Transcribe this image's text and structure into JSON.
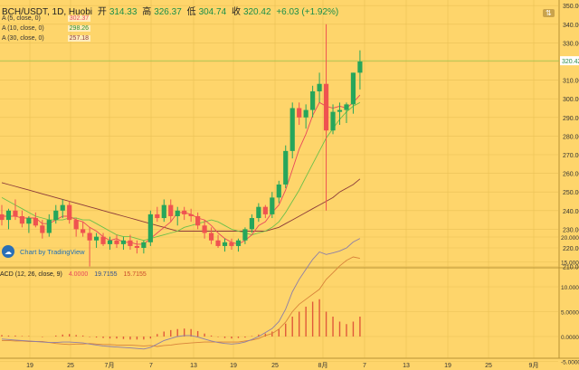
{
  "header": {
    "symbol": "BCH/USDT, 1D, Huobi",
    "open_label": "开",
    "open": "314.33",
    "high_label": "高",
    "high": "326.37",
    "low_label": "低",
    "low": "304.74",
    "close_label": "收",
    "close": "320.42",
    "change": "+6.03 (+1.92%)"
  },
  "indicators": [
    {
      "label": "A (5, close, 0)",
      "value": "302.37",
      "color": "#e8485c"
    },
    {
      "label": "A (10, close, 0)",
      "value": "298.26",
      "color": "#6cc04a"
    },
    {
      "label": "A (30, close, 0)",
      "value": "257.18",
      "color": "#8b3a3a"
    }
  ],
  "branding": {
    "text": "Chart by TradingView",
    "icon": "tradingview-logo"
  },
  "macd_header": {
    "label": "ACD (12, 26, close, 9)",
    "hist": "4.0000",
    "macd": "19.7155",
    "signal": "15.7155"
  },
  "colors": {
    "up": "#26a65b",
    "down": "#ef5350",
    "background": "#fed56b",
    "last_price_tag": "#ffffff"
  },
  "chart_data": [
    {
      "type": "candlestick",
      "title": "BCH/USDT, 1D, Huobi",
      "y_ticks": [
        210,
        220,
        230,
        240,
        250,
        260,
        270,
        280,
        290,
        300,
        310,
        320,
        330,
        340,
        350
      ],
      "x_ticks": [
        "19",
        "25",
        "7月",
        "7",
        "13",
        "19",
        "25",
        "8月",
        "7",
        "13",
        "19",
        "25",
        "9月"
      ],
      "last_price": "320.42",
      "ylim": [
        210,
        355
      ],
      "candles": [
        {
          "o": 238,
          "h": 243,
          "l": 232,
          "c": 235
        },
        {
          "o": 235,
          "h": 241,
          "l": 230,
          "c": 240
        },
        {
          "o": 240,
          "h": 246,
          "l": 235,
          "c": 237
        },
        {
          "o": 237,
          "h": 240,
          "l": 231,
          "c": 233
        },
        {
          "o": 233,
          "h": 237,
          "l": 228,
          "c": 236
        },
        {
          "o": 236,
          "h": 239,
          "l": 231,
          "c": 232
        },
        {
          "o": 232,
          "h": 235,
          "l": 225,
          "c": 228
        },
        {
          "o": 228,
          "h": 238,
          "l": 226,
          "c": 235
        },
        {
          "o": 235,
          "h": 243,
          "l": 233,
          "c": 240
        },
        {
          "o": 240,
          "h": 246,
          "l": 236,
          "c": 243
        },
        {
          "o": 243,
          "h": 245,
          "l": 233,
          "c": 235
        },
        {
          "o": 235,
          "h": 236,
          "l": 226,
          "c": 230
        },
        {
          "o": 230,
          "h": 234,
          "l": 226,
          "c": 228
        },
        {
          "o": 228,
          "h": 231,
          "l": 210,
          "c": 224
        },
        {
          "o": 224,
          "h": 228,
          "l": 220,
          "c": 226
        },
        {
          "o": 226,
          "h": 228,
          "l": 221,
          "c": 222
        },
        {
          "o": 222,
          "h": 226,
          "l": 219,
          "c": 224
        },
        {
          "o": 224,
          "h": 227,
          "l": 220,
          "c": 222
        },
        {
          "o": 222,
          "h": 226,
          "l": 219,
          "c": 224
        },
        {
          "o": 224,
          "h": 227,
          "l": 219,
          "c": 221
        },
        {
          "o": 221,
          "h": 224,
          "l": 217,
          "c": 220
        },
        {
          "o": 220,
          "h": 224,
          "l": 217,
          "c": 223
        },
        {
          "o": 223,
          "h": 240,
          "l": 221,
          "c": 238
        },
        {
          "o": 238,
          "h": 242,
          "l": 234,
          "c": 236
        },
        {
          "o": 236,
          "h": 246,
          "l": 234,
          "c": 243
        },
        {
          "o": 243,
          "h": 246,
          "l": 234,
          "c": 237
        },
        {
          "o": 237,
          "h": 242,
          "l": 232,
          "c": 240
        },
        {
          "o": 240,
          "h": 242,
          "l": 235,
          "c": 238
        },
        {
          "o": 238,
          "h": 241,
          "l": 234,
          "c": 237
        },
        {
          "o": 237,
          "h": 239,
          "l": 230,
          "c": 232
        },
        {
          "o": 232,
          "h": 235,
          "l": 225,
          "c": 228
        },
        {
          "o": 228,
          "h": 231,
          "l": 222,
          "c": 224
        },
        {
          "o": 224,
          "h": 227,
          "l": 220,
          "c": 221
        },
        {
          "o": 221,
          "h": 225,
          "l": 218,
          "c": 223
        },
        {
          "o": 223,
          "h": 225,
          "l": 219,
          "c": 221
        },
        {
          "o": 221,
          "h": 225,
          "l": 218,
          "c": 224
        },
        {
          "o": 224,
          "h": 231,
          "l": 222,
          "c": 230
        },
        {
          "o": 230,
          "h": 238,
          "l": 228,
          "c": 236
        },
        {
          "o": 236,
          "h": 244,
          "l": 234,
          "c": 242
        },
        {
          "o": 242,
          "h": 243,
          "l": 236,
          "c": 238
        },
        {
          "o": 238,
          "h": 250,
          "l": 236,
          "c": 247
        },
        {
          "o": 247,
          "h": 256,
          "l": 244,
          "c": 254
        },
        {
          "o": 254,
          "h": 275,
          "l": 252,
          "c": 272
        },
        {
          "o": 272,
          "h": 298,
          "l": 268,
          "c": 295
        },
        {
          "o": 295,
          "h": 298,
          "l": 286,
          "c": 290
        },
        {
          "o": 290,
          "h": 297,
          "l": 284,
          "c": 294
        },
        {
          "o": 294,
          "h": 307,
          "l": 290,
          "c": 304
        },
        {
          "o": 304,
          "h": 314,
          "l": 298,
          "c": 308
        },
        {
          "o": 308,
          "h": 340,
          "l": 240,
          "c": 283
        },
        {
          "o": 283,
          "h": 297,
          "l": 281,
          "c": 293
        },
        {
          "o": 293,
          "h": 298,
          "l": 286,
          "c": 294
        },
        {
          "o": 294,
          "h": 298,
          "l": 287,
          "c": 297
        },
        {
          "o": 297,
          "h": 314,
          "l": 292,
          "c": 314
        },
        {
          "o": 314,
          "h": 326,
          "l": 305,
          "c": 320
        }
      ],
      "ma5": [
        237,
        237,
        237,
        236,
        236,
        236,
        233,
        233,
        235,
        237,
        237,
        235,
        234,
        231,
        229,
        226,
        224,
        225,
        223,
        223,
        222,
        222,
        225,
        228,
        231,
        234,
        239,
        239,
        238,
        236,
        235,
        232,
        228,
        225,
        223,
        222,
        224,
        227,
        232,
        234,
        239,
        243,
        251,
        262,
        273,
        281,
        291,
        298,
        296,
        295,
        296,
        295,
        298,
        302
      ],
      "ma10": [
        247,
        245,
        243,
        241,
        239,
        237,
        236,
        235,
        235,
        235,
        236,
        236,
        235,
        235,
        233,
        231,
        229,
        227,
        226,
        226,
        225,
        224,
        225,
        226,
        227,
        228,
        229,
        231,
        232,
        233,
        234,
        235,
        234,
        232,
        230,
        229,
        228,
        227,
        228,
        229,
        231,
        234,
        239,
        245,
        251,
        258,
        265,
        272,
        279,
        284,
        289,
        293,
        296,
        298
      ],
      "ma30": [
        255,
        254,
        253,
        252,
        251,
        250,
        249,
        248,
        247,
        246,
        245,
        244,
        243,
        242,
        241,
        240,
        239,
        238,
        237,
        236,
        235,
        234,
        233,
        232,
        231,
        230,
        229,
        229,
        229,
        229,
        229,
        229,
        229,
        229,
        229,
        229,
        229,
        229,
        229,
        229,
        230,
        231,
        233,
        235,
        237,
        239,
        241,
        243,
        245,
        247,
        250,
        252,
        254,
        257
      ]
    },
    {
      "type": "bar",
      "title": "ACD (12, 26, close, 9)",
      "y_ticks": [
        "20.0000",
        "15.0000",
        "10.0000",
        "5.0000",
        "0.0000",
        "-5.0000"
      ],
      "ylim": [
        -5,
        20
      ],
      "histogram": [
        0.3,
        0.2,
        0.2,
        0.1,
        0.1,
        0.0,
        -0.1,
        0.0,
        0.2,
        0.4,
        0.5,
        0.3,
        0.2,
        -0.1,
        -0.2,
        -0.3,
        -0.4,
        -0.4,
        -0.5,
        -0.6,
        -0.6,
        -0.6,
        -0.4,
        0.5,
        1.0,
        1.3,
        1.5,
        1.6,
        1.5,
        1.1,
        0.6,
        0.2,
        -0.1,
        -0.3,
        -0.4,
        -0.3,
        -0.2,
        0.1,
        0.4,
        0.6,
        1.0,
        1.5,
        2.6,
        4.0,
        5.0,
        6.0,
        7.0,
        7.5,
        5.0,
        4.0,
        3.0,
        2.5,
        3.0,
        4.0
      ],
      "macd": [
        -0.5,
        -0.6,
        -0.7,
        -0.8,
        -0.9,
        -1.0,
        -1.1,
        -1.2,
        -1.2,
        -1.1,
        -1.1,
        -1.2,
        -1.3,
        -1.5,
        -1.7,
        -1.9,
        -2.0,
        -2.1,
        -2.2,
        -2.3,
        -2.4,
        -2.5,
        -2.2,
        -1.5,
        -0.8,
        -0.4,
        0.0,
        0.2,
        0.2,
        -0.1,
        -0.5,
        -0.9,
        -1.2,
        -1.4,
        -1.5,
        -1.4,
        -1.1,
        -0.6,
        0.0,
        0.8,
        1.6,
        3.0,
        5.5,
        9.0,
        11.5,
        13.5,
        15.5,
        17.0,
        16.5,
        16.8,
        17.2,
        17.8,
        19.0,
        19.7
      ],
      "signal": [
        -0.8,
        -0.8,
        -0.9,
        -0.9,
        -1.0,
        -1.0,
        -1.0,
        -1.2,
        -1.4,
        -1.5,
        -1.6,
        -1.5,
        -1.5,
        -1.4,
        -1.5,
        -1.6,
        -1.6,
        -1.7,
        -1.7,
        -1.7,
        -1.8,
        -1.9,
        -1.8,
        -2.0,
        -1.8,
        -1.7,
        -1.5,
        -1.4,
        -1.3,
        -1.2,
        -1.1,
        -1.1,
        -1.1,
        -1.1,
        -1.1,
        -1.1,
        -0.9,
        -0.7,
        -0.4,
        0.2,
        0.6,
        1.5,
        2.9,
        5.0,
        6.5,
        7.5,
        8.5,
        9.5,
        11.5,
        12.8,
        14.2,
        15.3,
        16.0,
        15.7
      ]
    }
  ]
}
